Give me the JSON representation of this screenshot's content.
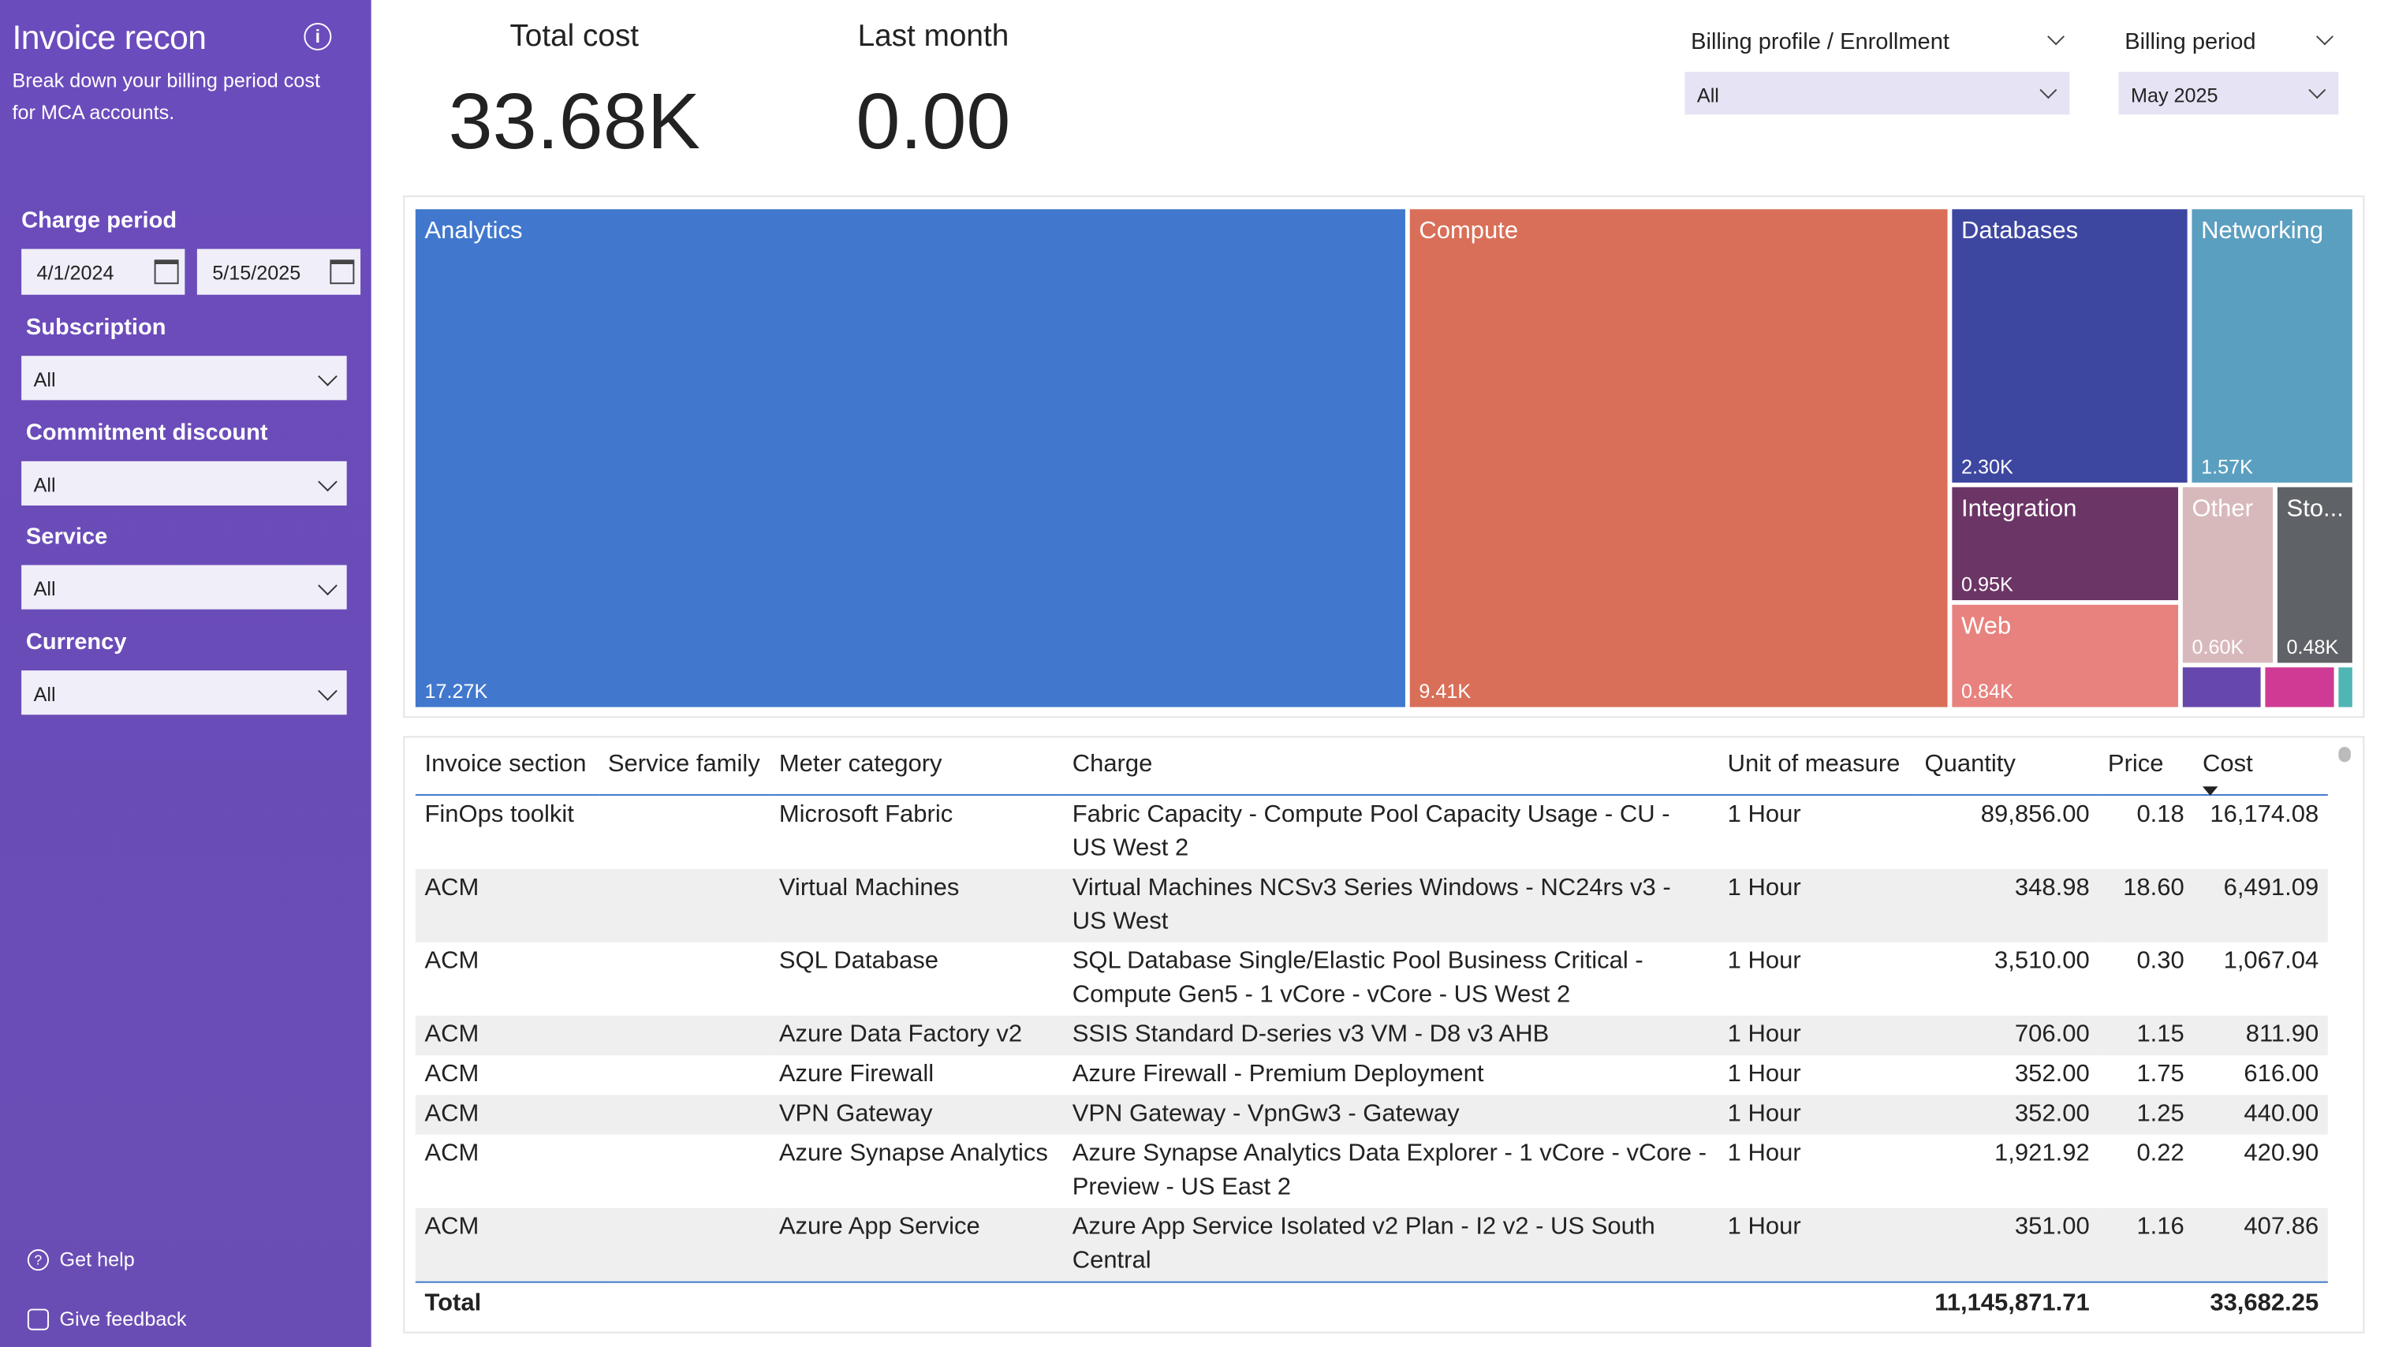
{
  "sidebar": {
    "title": "Invoice recon",
    "description": [
      "Break down your billing period cost",
      "for MCA accounts."
    ],
    "charge_period": {
      "label": "Charge period",
      "start": "4/1/2024",
      "end": "5/15/2025"
    },
    "filters": [
      {
        "label": "Subscription",
        "value": "All"
      },
      {
        "label": "Commitment discount",
        "value": "All"
      },
      {
        "label": "Service",
        "value": "All"
      },
      {
        "label": "Currency",
        "value": "All"
      }
    ],
    "links": [
      "Get help",
      "Give feedback"
    ]
  },
  "kpis": [
    {
      "label": "Total cost",
      "value": "33.68K"
    },
    {
      "label": "Last month",
      "value": "0.00"
    }
  ],
  "slicers": [
    {
      "label": "Billing profile / Enrollment",
      "value": "All"
    },
    {
      "label": "Billing period",
      "value": "May 2025"
    }
  ],
  "treemap": {
    "tiles": [
      {
        "label": "Analytics",
        "value": "17.27K"
      },
      {
        "label": "Compute",
        "value": "9.41K"
      },
      {
        "label": "Databases",
        "value": "2.30K"
      },
      {
        "label": "Networking",
        "value": "1.57K"
      },
      {
        "label": "Integration",
        "value": "0.95K"
      },
      {
        "label": "Web",
        "value": "0.84K"
      },
      {
        "label": "Other",
        "value": "0.60K"
      },
      {
        "label": "Sto...",
        "value": "0.48K"
      }
    ]
  },
  "table": {
    "columns": [
      "Invoice section",
      "Service family",
      "Meter category",
      "Charge",
      "Unit of measure",
      "Quantity",
      "Price",
      "Cost"
    ],
    "rows": [
      [
        "FinOps toolkit",
        null,
        "Microsoft Fabric",
        "Fabric Capacity - Compute Pool Capacity Usage - CU - US West 2",
        "1 Hour",
        "89,856.00",
        "0.18",
        "16,174.08"
      ],
      [
        "ACM",
        null,
        "Virtual Machines",
        "Virtual Machines NCSv3 Series Windows - NC24rs v3 - US West",
        "1 Hour",
        "348.98",
        "18.60",
        "6,491.09"
      ],
      [
        "ACM",
        null,
        "SQL Database",
        "SQL Database Single/Elastic Pool Business Critical - Compute Gen5 - 1 vCore - vCore - US West 2",
        "1 Hour",
        "3,510.00",
        "0.30",
        "1,067.04"
      ],
      [
        "ACM",
        null,
        "Azure Data Factory v2",
        "SSIS Standard D-series v3 VM - D8 v3 AHB",
        "1 Hour",
        "706.00",
        "1.15",
        "811.90"
      ],
      [
        "ACM",
        null,
        "Azure Firewall",
        "Azure Firewall - Premium Deployment",
        "1 Hour",
        "352.00",
        "1.75",
        "616.00"
      ],
      [
        "ACM",
        null,
        "VPN Gateway",
        "VPN Gateway - VpnGw3 - Gateway",
        "1 Hour",
        "352.00",
        "1.25",
        "440.00"
      ],
      [
        "ACM",
        null,
        "Azure Synapse Analytics",
        "Azure Synapse Analytics Data Explorer - 1 vCore - vCore - Preview - US East 2",
        "1 Hour",
        "1,921.92",
        "0.22",
        "420.90"
      ],
      [
        "ACM",
        null,
        "Azure App Service",
        "Azure App Service Isolated v2 Plan - I2 v2 - US South Central",
        "1 Hour",
        "351.00",
        "1.16",
        "407.86"
      ]
    ],
    "total": [
      "Total",
      null,
      null,
      null,
      null,
      "11,145,871.71",
      null,
      "33,682.25"
    ]
  }
}
